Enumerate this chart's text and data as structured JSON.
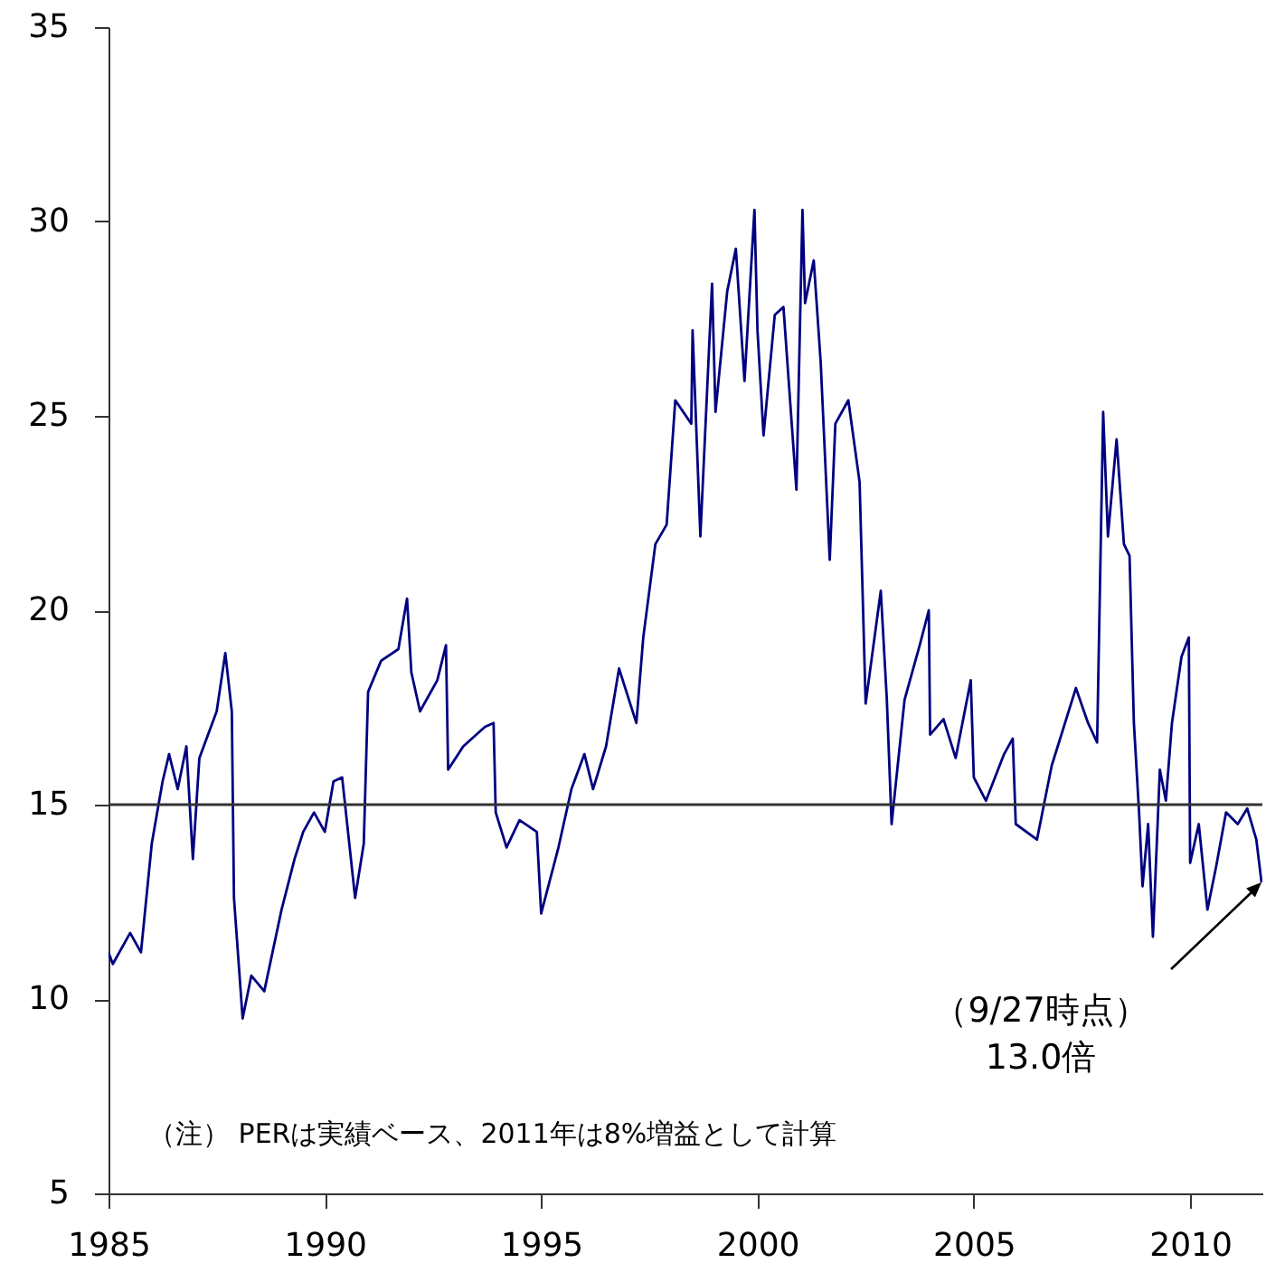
{
  "chart_data": {
    "type": "line",
    "x": [
      1985.0,
      1985.1,
      1985.5,
      1985.75,
      1986.0,
      1986.25,
      1986.4,
      1986.6,
      1986.8,
      1986.95,
      1987.1,
      1987.5,
      1987.7,
      1987.85,
      1987.9,
      1988.1,
      1988.3,
      1988.6,
      1989.0,
      1989.3,
      1989.5,
      1989.75,
      1990.0,
      1990.2,
      1990.4,
      1990.7,
      1990.9,
      1991.0,
      1991.3,
      1991.7,
      1991.9,
      1992.0,
      1992.2,
      1992.6,
      1992.8,
      1992.85,
      1993.2,
      1993.7,
      1993.9,
      1993.95,
      1994.2,
      1994.5,
      1994.9,
      1995.0,
      1995.4,
      1995.7,
      1996.0,
      1996.2,
      1996.5,
      1996.8,
      1997.2,
      1997.36,
      1997.64,
      1997.9,
      1998.1,
      1998.47,
      1998.5,
      1998.68,
      1998.9,
      1998.95,
      1999.03,
      1999.3,
      1999.5,
      1999.7,
      1999.93,
      2000.0,
      2000.14,
      2000.4,
      2000.6,
      2000.9,
      2001.04,
      2001.1,
      2001.3,
      2001.46,
      2001.67,
      2001.8,
      2002.1,
      2002.36,
      2002.5,
      2002.85,
      2002.99,
      2003.1,
      2003.4,
      2003.75,
      2003.96,
      2003.99,
      2004.3,
      2004.58,
      2004.93,
      2005.0,
      2005.28,
      2005.7,
      2005.9,
      2005.97,
      2006.46,
      2006.8,
      2007.36,
      2007.64,
      2007.85,
      2007.99,
      2008.1,
      2008.3,
      2008.47,
      2008.6,
      2008.7,
      2008.82,
      2008.9,
      2009.03,
      2009.14,
      2009.3,
      2009.44,
      2009.58,
      2009.8,
      2009.97,
      2010.0,
      2010.2,
      2010.4,
      2010.6,
      2010.83,
      2011.1,
      2011.32,
      2011.53,
      2011.65
    ],
    "series": [
      {
        "color": "#000080",
        "values": [
          11.2,
          10.9,
          11.7,
          11.2,
          14.0,
          15.6,
          16.3,
          15.4,
          16.5,
          13.6,
          16.2,
          17.4,
          18.9,
          17.4,
          12.6,
          9.5,
          10.6,
          10.2,
          12.3,
          13.6,
          14.3,
          14.8,
          14.3,
          15.6,
          15.7,
          12.6,
          14.0,
          17.9,
          18.7,
          19.0,
          20.3,
          18.4,
          17.4,
          18.2,
          19.1,
          15.9,
          16.5,
          17.0,
          17.1,
          14.8,
          13.9,
          14.6,
          14.3,
          12.2,
          13.9,
          15.4,
          16.3,
          15.4,
          16.5,
          18.5,
          17.1,
          19.3,
          21.7,
          22.2,
          25.4,
          24.8,
          27.2,
          21.9,
          27.2,
          28.4,
          25.1,
          28.2,
          29.3,
          25.9,
          30.3,
          27.2,
          24.5,
          27.6,
          27.8,
          23.1,
          30.3,
          27.9,
          29.0,
          26.4,
          21.3,
          24.8,
          25.4,
          23.3,
          17.6,
          20.5,
          17.7,
          14.5,
          17.7,
          19.1,
          20.0,
          16.8,
          17.2,
          16.2,
          18.2,
          15.7,
          15.1,
          16.3,
          16.7,
          14.5,
          14.1,
          16.0,
          18.0,
          17.1,
          16.6,
          25.1,
          21.9,
          24.4,
          21.7,
          21.4,
          17.1,
          14.8,
          12.9,
          14.5,
          11.6,
          15.9,
          15.1,
          17.1,
          18.8,
          19.3,
          13.5,
          14.5,
          12.3,
          13.4,
          14.8,
          14.5,
          14.9,
          14.1,
          13.0
        ]
      }
    ],
    "xlim": [
      1985,
      2011.67
    ],
    "xticks": [
      1985,
      1990,
      1995,
      2000,
      2005,
      2010
    ],
    "ylim": [
      5,
      35
    ],
    "yticks": [
      5,
      10,
      15,
      20,
      25,
      30,
      35
    ],
    "ref_lines": [
      {
        "axis": "y",
        "value": 15,
        "color": "#333333"
      }
    ],
    "annotations": [
      {
        "text": "（9/27時点）\n13.0倍",
        "x": 2011.65,
        "y": 13.0
      },
      "（注） PERは実績ベース、2011年は8%増益として計算"
    ],
    "grid": false
  }
}
